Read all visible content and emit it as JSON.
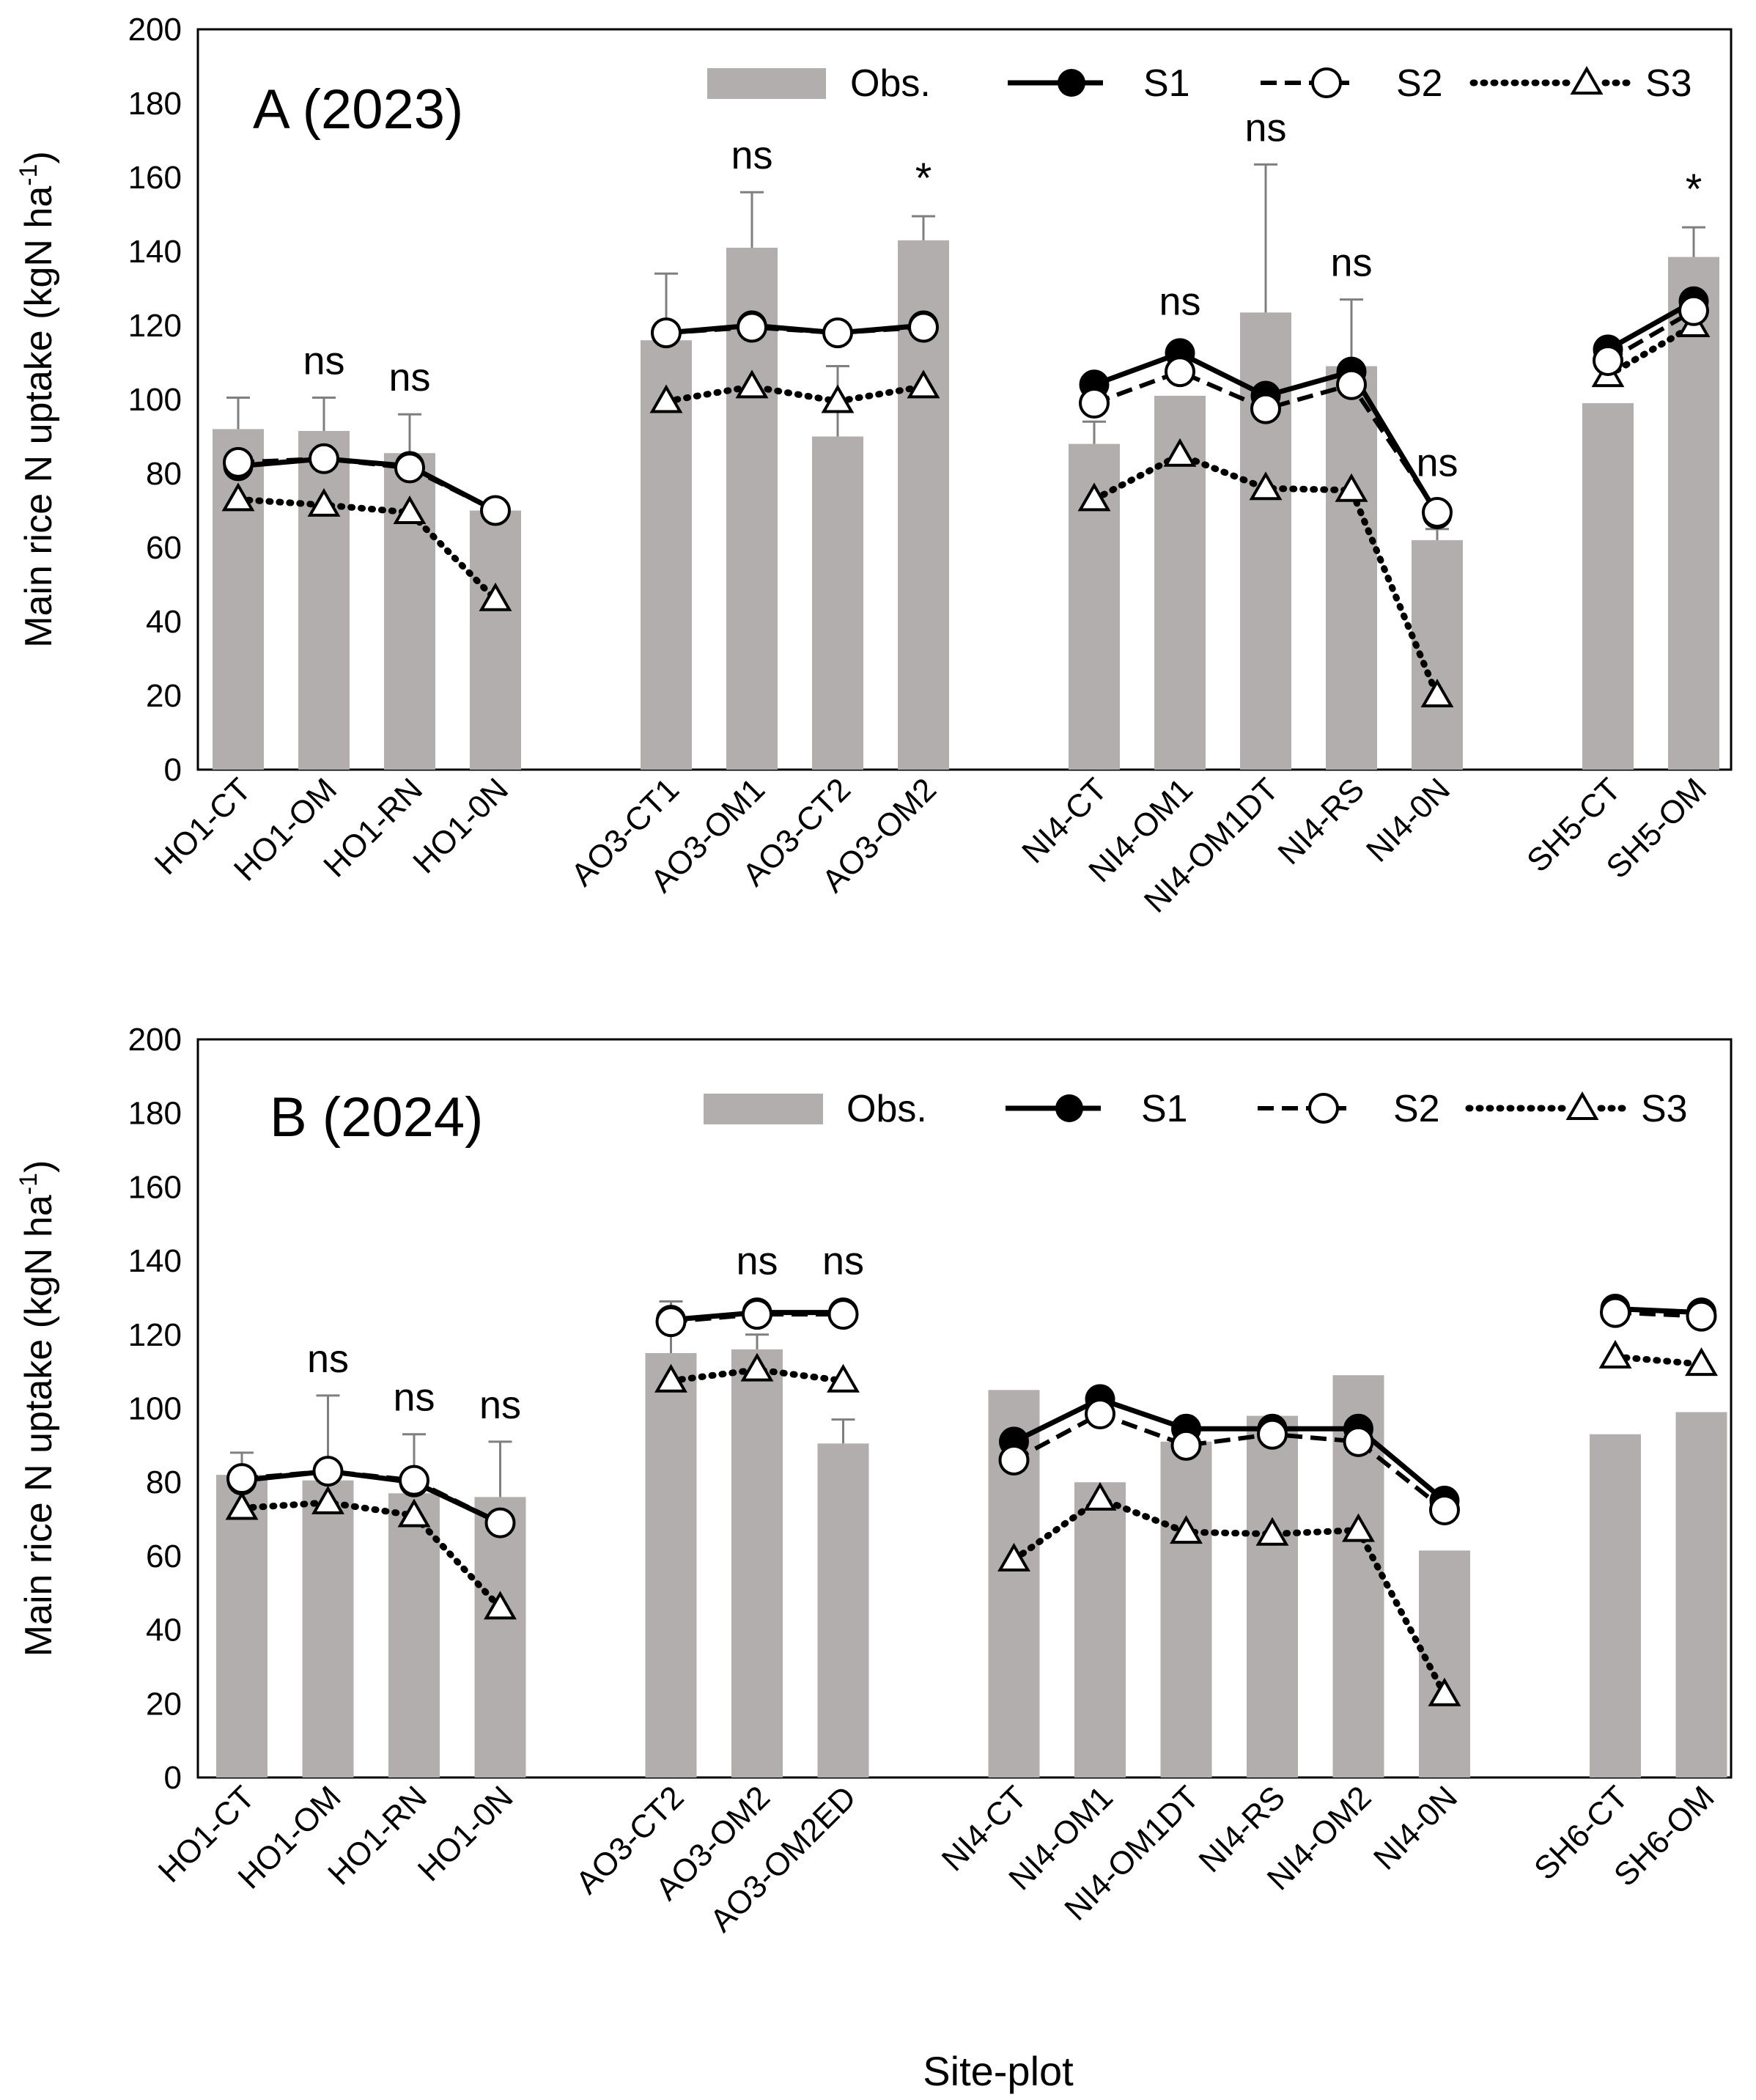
{
  "figure": {
    "xlabel": "Site-plot",
    "ylabel": "Main rice N uptake (kgN ha",
    "ylabel_sup": "-1",
    "ylabel_close": ")",
    "legend": [
      "Obs.",
      "S1",
      "S2",
      "S3"
    ],
    "colors": {
      "bar": "#b3aeae",
      "errorbar": "#7f7f7f",
      "line": "#000000"
    }
  },
  "chart_data": [
    {
      "type": "bar",
      "title": "A (2023)",
      "ylim": [
        0,
        200
      ],
      "yticks": [
        0,
        20,
        40,
        60,
        80,
        100,
        120,
        140,
        160,
        180,
        200
      ],
      "groups": [
        {
          "categories": [
            "HO1-CT",
            "HO1-OM",
            "HO1-RN",
            "HO1-0N"
          ]
        },
        {
          "categories": [
            "AO3-CT1",
            "AO3-OM1",
            "AO3-CT2",
            "AO3-OM2"
          ]
        },
        {
          "categories": [
            "NI4-CT",
            "NI4-OM1",
            "NI4-OM1DT",
            "NI4-RS",
            "NI4-0N"
          ]
        },
        {
          "categories": [
            "SH5-CT",
            "SH5-OM"
          ]
        }
      ],
      "series": [
        {
          "name": "Obs.",
          "kind": "bar",
          "groups": [
            [
              92,
              91.5,
              85.5,
              70
            ],
            [
              116,
              141,
              90,
              143
            ],
            [
              88,
              101,
              123.5,
              109,
              62
            ],
            [
              99,
              138.5
            ]
          ]
        },
        {
          "name": "S1",
          "kind": "line",
          "groups": [
            [
              82,
              84,
              82,
              70
            ],
            [
              118,
              120,
              118,
              120
            ],
            [
              104,
              112.5,
              101,
              107.5,
              69
            ],
            [
              113.5,
              126.5
            ]
          ]
        },
        {
          "name": "S2",
          "kind": "line",
          "groups": [
            [
              83,
              84,
              81.5,
              70
            ],
            [
              118,
              119.5,
              118,
              119.5
            ],
            [
              99,
              107.5,
              97.5,
              104,
              69.5
            ],
            [
              110.5,
              124
            ]
          ]
        },
        {
          "name": "S3",
          "kind": "line",
          "groups": [
            [
              73,
              71.5,
              69.5,
              46
            ],
            [
              99.5,
              103.5,
              99.5,
              103.5
            ],
            [
              73,
              85,
              76,
              75.5,
              20
            ],
            [
              106.5,
              120
            ]
          ]
        }
      ],
      "error_bars": [
        [
          8.5,
          9,
          10.5,
          null
        ],
        [
          18,
          15,
          19,
          6.5
        ],
        [
          6,
          null,
          40,
          18,
          3
        ],
        [
          null,
          8
        ]
      ],
      "significance": [
        [
          null,
          "ns",
          "ns",
          null
        ],
        [
          null,
          "ns",
          null,
          "*"
        ],
        [
          null,
          "ns",
          "ns",
          "ns",
          "ns"
        ],
        [
          null,
          "*"
        ]
      ]
    },
    {
      "type": "bar",
      "title": "B (2024)",
      "ylim": [
        0,
        200
      ],
      "yticks": [
        0,
        20,
        40,
        60,
        80,
        100,
        120,
        140,
        160,
        180,
        200
      ],
      "groups": [
        {
          "categories": [
            "HO1-CT",
            "HO1-OM",
            "HO1-RN",
            "HO1-0N"
          ]
        },
        {
          "categories": [
            "AO3-CT2",
            "AO3-OM2",
            "AO3-OM2ED"
          ]
        },
        {
          "categories": [
            "NI4-CT",
            "NI4-OM1",
            "NI4-OM1DT",
            "NI4-RS",
            "NI4-OM2",
            "NI4-0N"
          ]
        },
        {
          "categories": [
            "SH6-CT",
            "SH6-OM"
          ]
        }
      ],
      "series": [
        {
          "name": "Obs.",
          "kind": "bar",
          "groups": [
            [
              82,
              80.5,
              77,
              76
            ],
            [
              115,
              116,
              90.5
            ],
            [
              105,
              80,
              91,
              98,
              109,
              61.5
            ],
            [
              93,
              99
            ]
          ]
        },
        {
          "name": "S1",
          "kind": "line",
          "groups": [
            [
              80.5,
              83,
              80,
              69
            ],
            [
              124,
              126,
              126
            ],
            [
              91,
              102.5,
              94.5,
              94.5,
              94.5,
              75
            ],
            [
              127,
              126
            ]
          ]
        },
        {
          "name": "S2",
          "kind": "line",
          "groups": [
            [
              81,
              83,
              80.5,
              69
            ],
            [
              123.5,
              125.5,
              125.5
            ],
            [
              86,
              98.5,
              90,
              93,
              91,
              72.5
            ],
            [
              126,
              125
            ]
          ]
        },
        {
          "name": "S3",
          "kind": "line",
          "groups": [
            [
              73,
              74.5,
              71,
              46
            ],
            [
              107.5,
              110.5,
              107.5
            ],
            [
              59,
              75.5,
              66.5,
              66,
              67,
              22.5
            ],
            [
              114,
              112
            ]
          ]
        }
      ],
      "error_bars": [
        [
          6,
          23,
          16,
          15
        ],
        [
          14,
          4,
          6.5
        ],
        [
          null,
          null,
          null,
          null,
          null,
          null
        ],
        [
          null,
          null
        ]
      ],
      "significance": [
        [
          null,
          "ns",
          "ns",
          "ns"
        ],
        [
          null,
          "ns",
          "ns"
        ],
        [
          null,
          null,
          null,
          null,
          null,
          null
        ],
        [
          null,
          null
        ]
      ]
    }
  ]
}
